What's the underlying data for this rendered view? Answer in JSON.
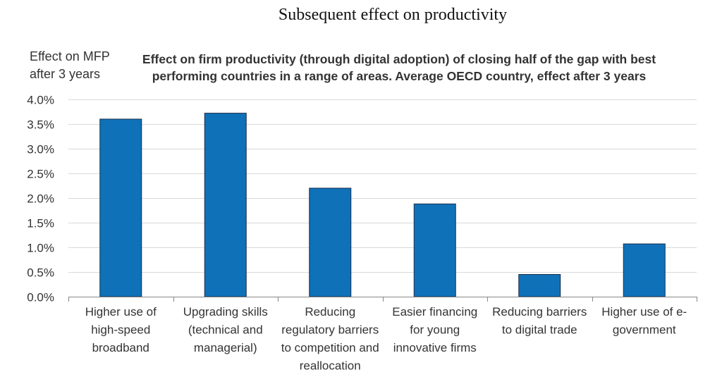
{
  "page": {
    "title": "Subsequent effect on productivity"
  },
  "chart_data": {
    "type": "bar",
    "title": "Effect on firm productivity (through digital adoption) of closing half of the gap with best performing countries in a range of areas. Average OECD country, effect after 3 years",
    "title_lines": [
      "Effect on firm productivity (through digital adoption) of closing half of the gap with best",
      "performing countries in a range of areas. Average OECD country, effect after 3 years"
    ],
    "ylabel": "Effect on MFP after 3 years",
    "ylabel_lines": [
      "Effect on MFP",
      "after 3 years"
    ],
    "xlabel": "",
    "ylim": [
      0,
      4.0
    ],
    "yticks": [
      0,
      0.5,
      1.0,
      1.5,
      2.0,
      2.5,
      3.0,
      3.5,
      4.0
    ],
    "ytick_labels": [
      "0.0%",
      "0.5%",
      "1.0%",
      "1.5%",
      "2.0%",
      "2.5%",
      "3.0%",
      "3.5%",
      "4.0%"
    ],
    "grid": true,
    "colors": {
      "bar": "#0f71b8",
      "bar_edge": "#1b2e4a",
      "grid": "#d9d9d9"
    },
    "categories": [
      "Higher use of high-speed broadband",
      "Upgrading skills (technical and managerial)",
      "Reducing regulatory barriers to competition and reallocation",
      "Easier financing for young innovative firms",
      "Reducing barriers to digital trade",
      "Higher use of e-government"
    ],
    "category_lines": [
      [
        "Higher use of",
        "high-speed",
        "broadband"
      ],
      [
        "Upgrading skills",
        "(technical and",
        "managerial)"
      ],
      [
        "Reducing",
        "regulatory barriers",
        "to competition and",
        "reallocation"
      ],
      [
        "Easier financing",
        "for young",
        "innovative firms"
      ],
      [
        "Reducing barriers",
        "to digital trade"
      ],
      [
        "Higher use of e-",
        "government"
      ]
    ],
    "values": [
      3.6,
      3.72,
      2.2,
      1.88,
      0.45,
      1.07
    ],
    "unit": "%"
  }
}
